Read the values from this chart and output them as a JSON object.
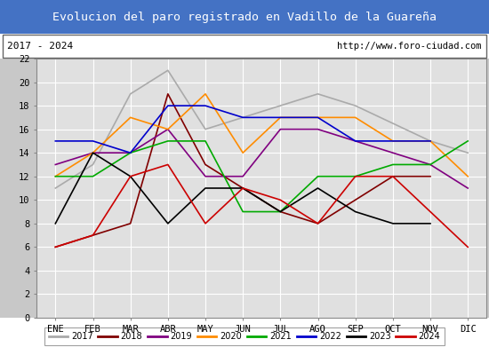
{
  "title": "Evolucion del paro registrado en Vadillo de la Guareña",
  "subtitle_left": "2017 - 2024",
  "subtitle_right": "http://www.foro-ciudad.com",
  "months": [
    "ENE",
    "FEB",
    "MAR",
    "ABR",
    "MAY",
    "JUN",
    "JUL",
    "AGO",
    "SEP",
    "OCT",
    "NOV",
    "DIC"
  ],
  "ylim": [
    0,
    22
  ],
  "yticks": [
    0,
    2,
    4,
    6,
    8,
    10,
    12,
    14,
    16,
    18,
    20,
    22
  ],
  "series": {
    "2017": {
      "color": "#aaaaaa",
      "data": [
        11,
        13,
        19,
        21,
        16,
        null,
        null,
        19,
        18,
        null,
        15,
        14
      ]
    },
    "2018": {
      "color": "#800000",
      "data": [
        6,
        7,
        8,
        19,
        13,
        11,
        9,
        8,
        10,
        12,
        12,
        null
      ]
    },
    "2019": {
      "color": "#800080",
      "data": [
        13,
        14,
        14,
        16,
        12,
        12,
        16,
        16,
        null,
        null,
        13,
        11
      ]
    },
    "2020": {
      "color": "#ff8c00",
      "data": [
        12,
        14,
        17,
        16,
        19,
        14,
        17,
        17,
        17,
        15,
        15,
        12
      ]
    },
    "2021": {
      "color": "#00aa00",
      "data": [
        12,
        12,
        14,
        15,
        15,
        9,
        9,
        12,
        12,
        13,
        13,
        15
      ]
    },
    "2022": {
      "color": "#0000cc",
      "data": [
        15,
        15,
        14,
        18,
        18,
        17,
        17,
        17,
        15,
        15,
        15,
        null
      ]
    },
    "2023": {
      "color": "#000000",
      "data": [
        8,
        14,
        12,
        8,
        11,
        11,
        9,
        11,
        9,
        8,
        8,
        null
      ]
    },
    "2024": {
      "color": "#cc0000",
      "data": [
        6,
        7,
        12,
        13,
        8,
        11,
        10,
        8,
        12,
        12,
        9,
        6
      ]
    }
  },
  "background_color": "#c8c8c8",
  "plot_bg_color": "#e0e0e0",
  "title_bg_color": "#4472c4",
  "title_text_color": "#ffffff",
  "subtitle_bg_color": "#ffffff",
  "legend_bg_color": "#ffffff",
  "grid_color": "#ffffff"
}
